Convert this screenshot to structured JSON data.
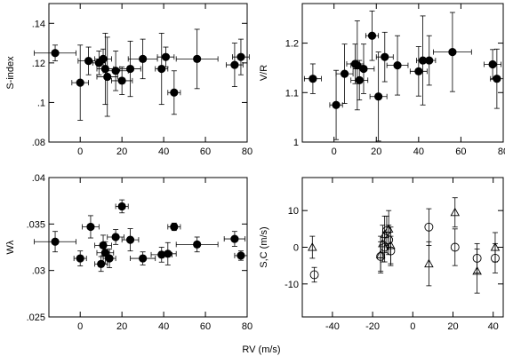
{
  "figure": {
    "xlabel": "RV (m/s)"
  },
  "chart_data": [
    {
      "type": "scatter",
      "ylabel": "S-index",
      "xlim": [
        -15,
        80
      ],
      "ylim": [
        0.08,
        0.15
      ],
      "xticks": [
        "0",
        "20",
        "40",
        "60",
        "80"
      ],
      "xtick_values": [
        0,
        20,
        40,
        60,
        80
      ],
      "yticks": [
        ".08",
        ".1",
        ".12",
        ".14"
      ],
      "ytick_values": [
        0.08,
        0.1,
        0.12,
        0.14
      ],
      "series": [
        {
          "marker": "filled-circle",
          "points": [
            {
              "x": -12,
              "y": 0.125,
              "xerr": 10,
              "yerr": 0.004
            },
            {
              "x": 0,
              "y": 0.11,
              "xerr": 4,
              "yerr": 0.019
            },
            {
              "x": 4,
              "y": 0.121,
              "xerr": 5,
              "yerr": 0.007
            },
            {
              "x": 9,
              "y": 0.12,
              "xerr": 3,
              "yerr": 0.006
            },
            {
              "x": 11,
              "y": 0.122,
              "xerr": 4,
              "yerr": 0.005
            },
            {
              "x": 12,
              "y": 0.117,
              "xerr": 4,
              "yerr": 0.018
            },
            {
              "x": 13,
              "y": 0.113,
              "xerr": 5,
              "yerr": 0.02
            },
            {
              "x": 17,
              "y": 0.116,
              "xerr": 6,
              "yerr": 0.01
            },
            {
              "x": 20,
              "y": 0.111,
              "xerr": 5,
              "yerr": 0.007
            },
            {
              "x": 24,
              "y": 0.117,
              "xerr": 5,
              "yerr": 0.014
            },
            {
              "x": 30,
              "y": 0.122,
              "xerr": 7,
              "yerr": 0.01
            },
            {
              "x": 39,
              "y": 0.117,
              "xerr": 3,
              "yerr": 0.018
            },
            {
              "x": 41,
              "y": 0.123,
              "xerr": 4,
              "yerr": 0.005
            },
            {
              "x": 45,
              "y": 0.105,
              "xerr": 3,
              "yerr": 0.011
            },
            {
              "x": 56,
              "y": 0.122,
              "xerr": 10,
              "yerr": 0.015
            },
            {
              "x": 74,
              "y": 0.119,
              "xerr": 4,
              "yerr": 0.011
            },
            {
              "x": 77,
              "y": 0.123,
              "xerr": 4,
              "yerr": 0.009
            }
          ]
        }
      ]
    },
    {
      "type": "scatter",
      "ylabel": "V/R",
      "xlim": [
        -15,
        80
      ],
      "ylim": [
        1.0,
        1.28
      ],
      "xticks": [
        "0",
        "20",
        "40",
        "60",
        "80"
      ],
      "xtick_values": [
        0,
        20,
        40,
        60,
        80
      ],
      "yticks": [
        "1",
        "1.1",
        "1.2"
      ],
      "ytick_values": [
        1.0,
        1.1,
        1.2
      ],
      "series": [
        {
          "marker": "filled-circle",
          "points": [
            {
              "x": -10,
              "y": 1.128,
              "xerr": 4,
              "yerr": 0.03
            },
            {
              "x": 1,
              "y": 1.075,
              "xerr": 3,
              "yerr": 0.07
            },
            {
              "x": 5,
              "y": 1.138,
              "xerr": 4,
              "yerr": 0.06
            },
            {
              "x": 10,
              "y": 1.158,
              "xerr": 4,
              "yerr": 0.04
            },
            {
              "x": 11,
              "y": 1.155,
              "xerr": 3,
              "yerr": 0.09
            },
            {
              "x": 12,
              "y": 1.125,
              "xerr": 4,
              "yerr": 0.04
            },
            {
              "x": 14,
              "y": 1.148,
              "xerr": 5,
              "yerr": 0.05
            },
            {
              "x": 18,
              "y": 1.215,
              "xerr": 3,
              "yerr": 0.05
            },
            {
              "x": 21,
              "y": 1.092,
              "xerr": 4,
              "yerr": 0.09
            },
            {
              "x": 24,
              "y": 1.172,
              "xerr": 4,
              "yerr": 0.05
            },
            {
              "x": 30,
              "y": 1.155,
              "xerr": 5,
              "yerr": 0.06
            },
            {
              "x": 40,
              "y": 1.143,
              "xerr": 4,
              "yerr": 0.05
            },
            {
              "x": 42,
              "y": 1.165,
              "xerr": 3,
              "yerr": 0.09
            },
            {
              "x": 45,
              "y": 1.165,
              "xerr": 3,
              "yerr": 0.05
            },
            {
              "x": 56,
              "y": 1.182,
              "xerr": 9,
              "yerr": 0.08
            },
            {
              "x": 75,
              "y": 1.157,
              "xerr": 4,
              "yerr": 0.03
            },
            {
              "x": 77,
              "y": 1.128,
              "xerr": 3,
              "yerr": 0.06
            }
          ]
        }
      ]
    },
    {
      "type": "scatter",
      "ylabel": "Wλ",
      "xlim": [
        -15,
        80
      ],
      "ylim": [
        0.025,
        0.04
      ],
      "xticks": [
        "0",
        "20",
        "40",
        "60",
        "80"
      ],
      "xtick_values": [
        0,
        20,
        40,
        60,
        80
      ],
      "yticks": [
        ".025",
        ".03",
        ".035",
        ".04"
      ],
      "ytick_values": [
        0.025,
        0.03,
        0.035,
        0.04
      ],
      "series": [
        {
          "marker": "filled-circle",
          "points": [
            {
              "x": -12,
              "y": 0.0331,
              "xerr": 10,
              "yerr": 0.0011
            },
            {
              "x": 0,
              "y": 0.0313,
              "xerr": 3,
              "yerr": 0.0008
            },
            {
              "x": 5,
              "y": 0.0347,
              "xerr": 4,
              "yerr": 0.0012
            },
            {
              "x": 10,
              "y": 0.0307,
              "xerr": 3,
              "yerr": 0.0008
            },
            {
              "x": 11,
              "y": 0.0327,
              "xerr": 4,
              "yerr": 0.0011
            },
            {
              "x": 12,
              "y": 0.0319,
              "xerr": 4,
              "yerr": 0.0012
            },
            {
              "x": 14,
              "y": 0.0313,
              "xerr": 3,
              "yerr": 0.001
            },
            {
              "x": 17,
              "y": 0.0336,
              "xerr": 4,
              "yerr": 0.0008
            },
            {
              "x": 20,
              "y": 0.0369,
              "xerr": 3,
              "yerr": 0.0007
            },
            {
              "x": 24,
              "y": 0.0333,
              "xerr": 4,
              "yerr": 0.0012
            },
            {
              "x": 30,
              "y": 0.0313,
              "xerr": 6,
              "yerr": 0.0007
            },
            {
              "x": 39,
              "y": 0.0317,
              "xerr": 5,
              "yerr": 0.0008
            },
            {
              "x": 42,
              "y": 0.0318,
              "xerr": 4,
              "yerr": 0.0012
            },
            {
              "x": 45,
              "y": 0.0347,
              "xerr": 3,
              "yerr": 0.0004
            },
            {
              "x": 56,
              "y": 0.0328,
              "xerr": 10,
              "yerr": 0.0008
            },
            {
              "x": 74,
              "y": 0.0334,
              "xerr": 5,
              "yerr": 0.0008
            },
            {
              "x": 77,
              "y": 0.0316,
              "xerr": 3,
              "yerr": 0.0005
            }
          ]
        }
      ]
    },
    {
      "type": "scatter",
      "ylabel": "S,C (m/s)",
      "xlim": [
        -55,
        45
      ],
      "ylim": [
        -19,
        19
      ],
      "xticks": [
        "-40",
        "-20",
        "0",
        "20",
        "40"
      ],
      "xtick_values": [
        -40,
        -20,
        0,
        20,
        40
      ],
      "yticks": [
        "-10",
        "0",
        "10"
      ],
      "ytick_values": [
        -10,
        0,
        10
      ],
      "series": [
        {
          "marker": "open-circle",
          "points": [
            {
              "x": -49,
              "y": -7.5,
              "yerr": 2
            },
            {
              "x": -16,
              "y": -2.5,
              "yerr": 4
            },
            {
              "x": -14,
              "y": 0.0,
              "yerr": 4
            },
            {
              "x": -13,
              "y": 4.5,
              "yerr": 4
            },
            {
              "x": -12,
              "y": 2.0,
              "yerr": 4
            },
            {
              "x": -11,
              "y": -1.0,
              "yerr": 4
            },
            {
              "x": 8,
              "y": 5.5,
              "yerr": 5
            },
            {
              "x": 21,
              "y": 0.0,
              "yerr": 5
            },
            {
              "x": 32,
              "y": -3.0,
              "yerr": 4
            },
            {
              "x": 41,
              "y": -3.0,
              "yerr": 4
            }
          ]
        },
        {
          "marker": "open-triangle",
          "points": [
            {
              "x": -50,
              "y": 0.0,
              "yerr": 3
            },
            {
              "x": -16,
              "y": -2.0,
              "yerr": 5
            },
            {
              "x": -15,
              "y": 1.0,
              "yerr": 5
            },
            {
              "x": -14,
              "y": 3.5,
              "yerr": 5
            },
            {
              "x": -12,
              "y": 5.0,
              "yerr": 5
            },
            {
              "x": -11,
              "y": 0.5,
              "yerr": 5
            },
            {
              "x": 8,
              "y": -4.5,
              "yerr": 6
            },
            {
              "x": 21,
              "y": 9.5,
              "yerr": 4
            },
            {
              "x": 32,
              "y": -6.5,
              "yerr": 6
            },
            {
              "x": 41,
              "y": 0.0,
              "yerr": 4
            }
          ]
        }
      ]
    }
  ]
}
